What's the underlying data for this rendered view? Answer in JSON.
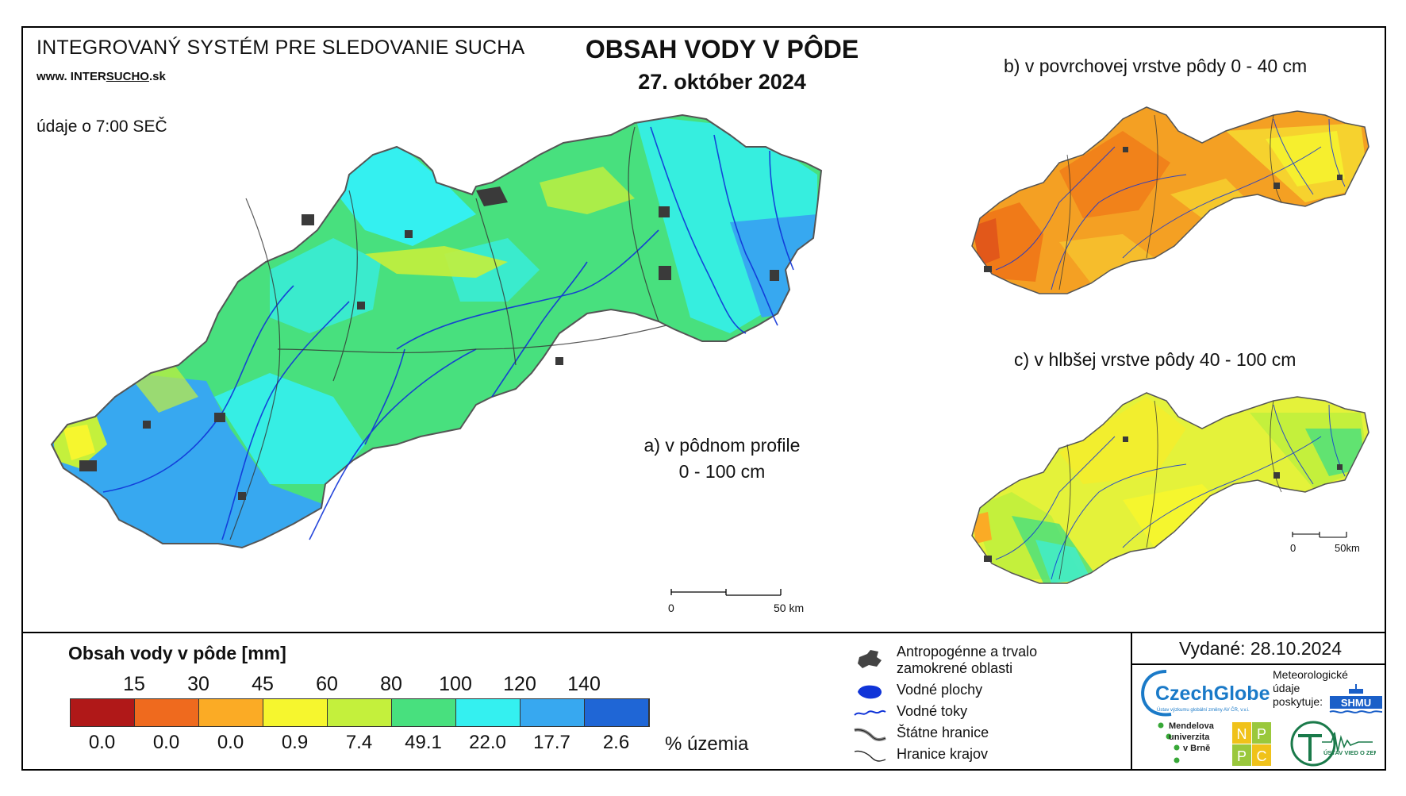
{
  "header": {
    "system_title": "INTEGROVANÝ SYSTÉM PRE SLEDOVANIE SUCHA",
    "site_prefix": "www. INTER",
    "site_middle": "SUCHO",
    "site_suffix": ".sk",
    "data_time": "údaje o 7:00 SEČ",
    "title": "OBSAH VODY V PÔDE",
    "date": "27. október 2024"
  },
  "maps": {
    "a_label_line1": "a) v pôdnom profile",
    "a_label_line2": "0 - 100 cm",
    "b_label": "b) v povrchovej vrstve pôdy 0 - 40 cm",
    "c_label": "c) v hlbšej vrstve pôdy 40 - 100 cm",
    "scale_main": {
      "start": "0",
      "end": "50 km"
    },
    "scale_small": {
      "start": "0",
      "end": "50km"
    },
    "colors": {
      "map_a_dominant": "#44e07a",
      "map_a_secondary": "#34e6f0",
      "map_a_tertiary": "#37a8f0",
      "map_b_dominant": "#f4a023",
      "map_b_secondary": "#f07a18",
      "map_c_dominant": "#c6ef3e",
      "map_c_secondary": "#f2ee2e",
      "river": "#1034d8",
      "border": "#444444"
    }
  },
  "legend": {
    "title": "Obsah vody v pôde  [mm]",
    "thresholds": [
      "15",
      "30",
      "45",
      "60",
      "80",
      "100",
      "120",
      "140"
    ],
    "classes": [
      {
        "color": "#b01818",
        "percent": "0.0"
      },
      {
        "color": "#ef6a1e",
        "percent": "0.0"
      },
      {
        "color": "#fbab25",
        "percent": "0.0"
      },
      {
        "color": "#f6f62e",
        "percent": "0.9"
      },
      {
        "color": "#c4f03c",
        "percent": "7.4"
      },
      {
        "color": "#48e07e",
        "percent": "49.1"
      },
      {
        "color": "#34f0f0",
        "percent": "22.0"
      },
      {
        "color": "#37a8f0",
        "percent": "17.7"
      },
      {
        "color": "#1f66d6",
        "percent": "2.6"
      }
    ],
    "percent_unit": "% územia",
    "symbols": {
      "anthropogenic_line1": "Antropogénne a trvalo",
      "anthropogenic_line2": "zamokrené oblasti",
      "water_bodies": "Vodné plochy",
      "streams": "Vodné toky",
      "state_borders": "Štátne hranice",
      "region_borders": "Hranice krajov"
    }
  },
  "footer": {
    "issued": "Vydané: 28.10.2024",
    "czechglobe": "CzechGlobe",
    "czechglobe_sub": "Ústav výzkumu globální změny AV ČR, v.v.i.",
    "meteo_line1": "Meteorologické",
    "meteo_line2": "údaje",
    "meteo_line3": "poskytuje:",
    "shmu": "SHMU",
    "mendel_line1": "Mendelova",
    "mendel_line2": "univerzita",
    "mendel_line3": "v Brně",
    "nppc": [
      "N",
      "P",
      "P",
      "C"
    ],
    "uvz": "ÚSTAV VIED O ZEMI"
  }
}
